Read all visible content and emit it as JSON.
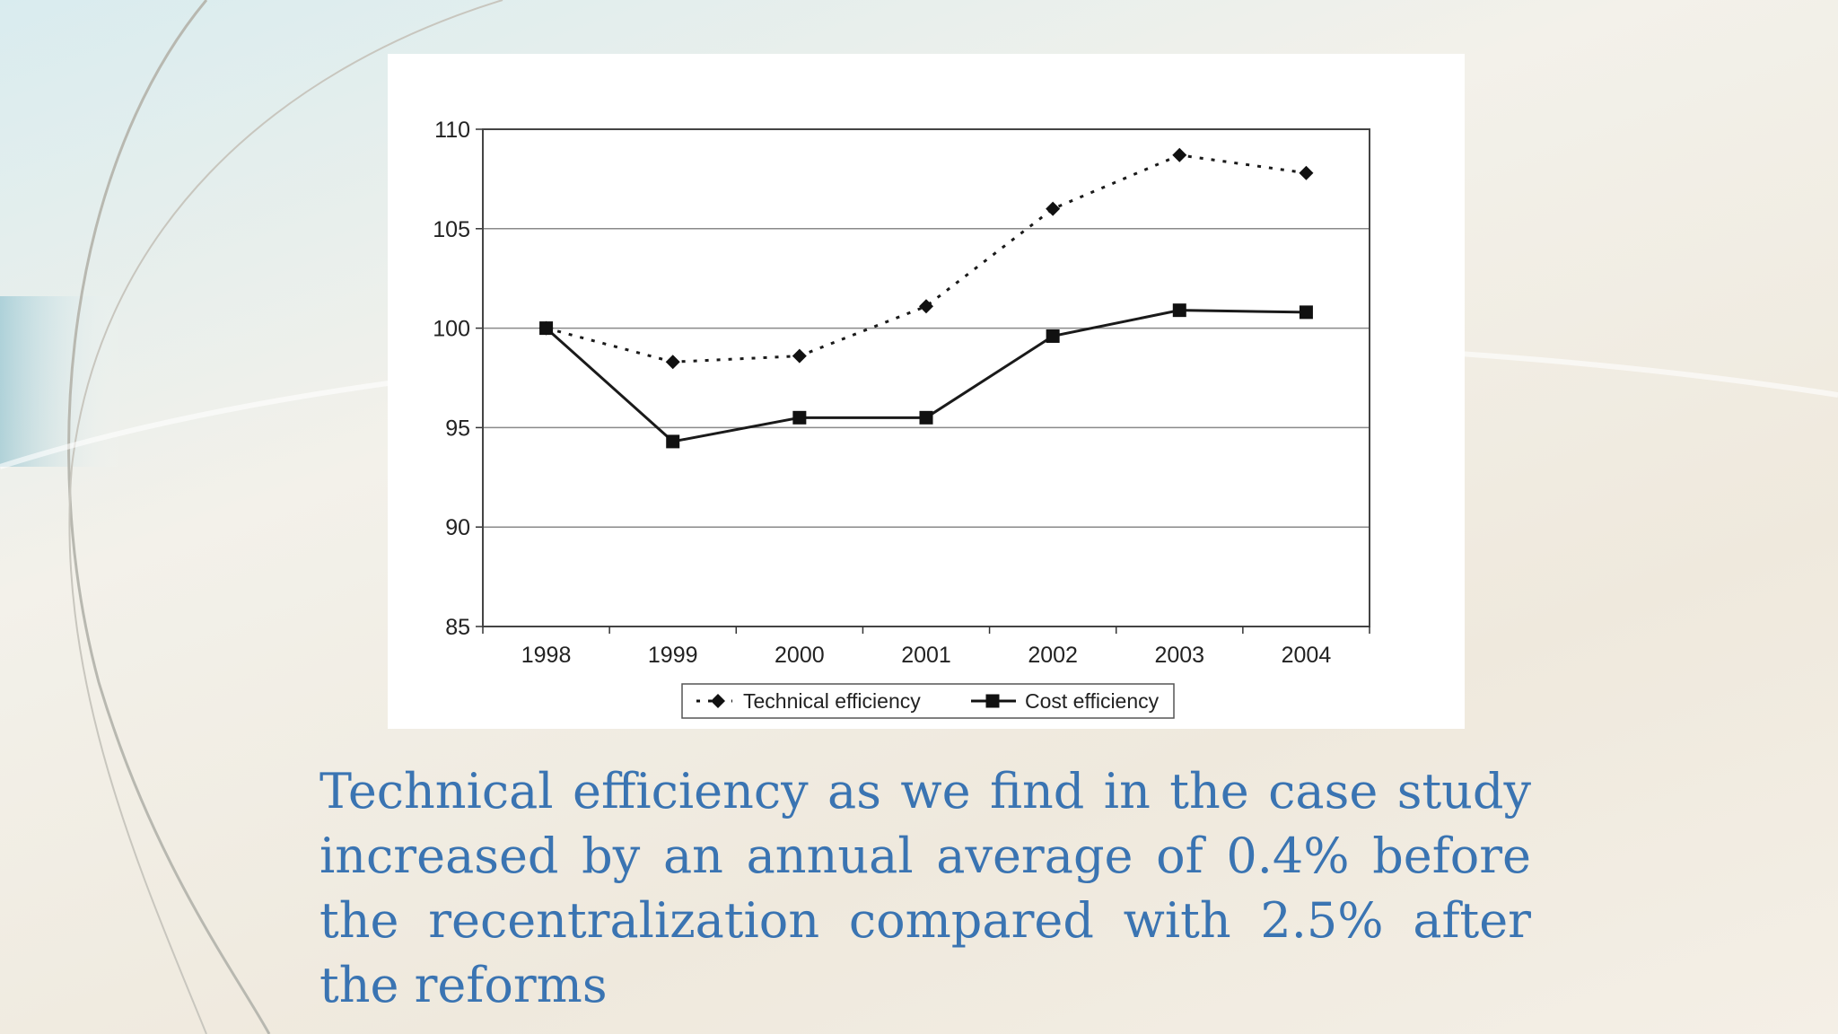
{
  "caption": "Technical efficiency as we find in the case study increased by an annual average of 0.4% before the recentralization compared with 2.5% after the reforms",
  "chart_data": {
    "type": "line",
    "categories": [
      "1998",
      "1999",
      "2000",
      "2001",
      "2002",
      "2003",
      "2004"
    ],
    "series": [
      {
        "name": "Technical efficiency",
        "values": [
          100,
          98.3,
          98.6,
          101.1,
          106,
          108.7,
          107.8
        ],
        "style": "dotted",
        "marker": "diamond",
        "color": "#1a1a1a"
      },
      {
        "name": "Cost efficiency",
        "values": [
          100,
          94.3,
          95.5,
          95.5,
          99.6,
          100.9,
          100.8
        ],
        "style": "solid",
        "marker": "square",
        "color": "#1a1a1a"
      }
    ],
    "yticks": [
      85,
      90,
      95,
      100,
      105,
      110
    ],
    "ylim": [
      85,
      110
    ],
    "grid": true,
    "legend": "bottom-center",
    "title": "",
    "xlabel": "",
    "ylabel": ""
  }
}
